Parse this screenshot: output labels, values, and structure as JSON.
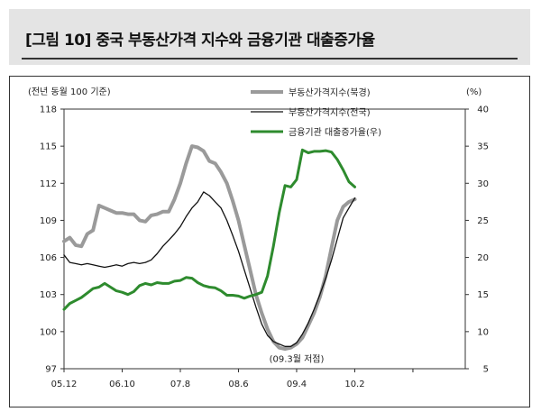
{
  "header": {
    "title": "[그림 10] 중국 부동산가격 지수와 금융기관 대출증가율"
  },
  "chart_data": {
    "type": "line",
    "left_axis_label": "(전년 동월 100 기준)",
    "right_axis_label": "(%)",
    "left_ylim": [
      97,
      118
    ],
    "left_ticks": [
      97,
      100,
      103,
      106,
      109,
      112,
      115,
      118
    ],
    "right_ylim": [
      5,
      40
    ],
    "right_ticks": [
      5,
      10,
      15,
      20,
      25,
      30,
      35,
      40
    ],
    "xlim": [
      0,
      69
    ],
    "x_ticks": [
      {
        "label": "05.12",
        "x": 0
      },
      {
        "label": "06.10",
        "x": 10
      },
      {
        "label": "07.8",
        "x": 20
      },
      {
        "label": "08.6",
        "x": 30
      },
      {
        "label": "09.4",
        "x": 40
      },
      {
        "label": "10.2",
        "x": 50
      }
    ],
    "annotation": {
      "text": "(09.3월 저점)",
      "x": 40,
      "y": 98.7
    },
    "series": [
      {
        "name": "부동산가격지수(북경)",
        "axis": "left",
        "color": "#9a9a9a",
        "x": [
          0,
          1,
          2,
          3,
          4,
          5,
          6,
          7,
          8,
          9,
          10,
          11,
          12,
          13,
          14,
          15,
          16,
          17,
          18,
          19,
          20,
          21,
          22,
          23,
          24,
          25,
          26,
          27,
          28,
          29,
          30,
          31,
          32,
          33,
          34,
          35,
          36,
          37,
          38,
          39,
          40,
          41,
          42,
          43,
          44,
          45,
          46,
          47,
          48,
          49,
          50
        ],
        "values": [
          107.3,
          107.6,
          107.0,
          106.9,
          107.9,
          108.2,
          110.2,
          110.0,
          109.8,
          109.6,
          109.6,
          109.5,
          109.5,
          109.0,
          108.9,
          109.4,
          109.5,
          109.7,
          109.7,
          110.7,
          112.0,
          113.6,
          115.0,
          114.9,
          114.6,
          113.8,
          113.6,
          112.9,
          112.0,
          110.6,
          109.0,
          107.0,
          105.0,
          103.0,
          101.5,
          100.2,
          99.2,
          98.7,
          98.6,
          98.7,
          99.0,
          99.5,
          100.5,
          101.5,
          102.8,
          104.5,
          106.8,
          109.0,
          110.1,
          110.5,
          110.7
        ]
      },
      {
        "name": "부동산가격지수(전국)",
        "axis": "left",
        "color": "#111111",
        "x": [
          0,
          1,
          2,
          3,
          4,
          5,
          6,
          7,
          8,
          9,
          10,
          11,
          12,
          13,
          14,
          15,
          16,
          17,
          18,
          19,
          20,
          21,
          22,
          23,
          24,
          25,
          26,
          27,
          28,
          29,
          30,
          31,
          32,
          33,
          34,
          35,
          36,
          37,
          38,
          39,
          40,
          41,
          42,
          43,
          44,
          45,
          46,
          47,
          48,
          49,
          50
        ],
        "values": [
          106.2,
          105.6,
          105.5,
          105.4,
          105.5,
          105.4,
          105.3,
          105.2,
          105.3,
          105.4,
          105.3,
          105.5,
          105.6,
          105.5,
          105.6,
          105.8,
          106.3,
          106.9,
          107.4,
          107.9,
          108.5,
          109.3,
          110.0,
          110.5,
          111.3,
          111.0,
          110.5,
          110.0,
          109.0,
          107.8,
          106.5,
          105.0,
          103.5,
          102.0,
          100.6,
          99.7,
          99.2,
          99.0,
          98.8,
          98.8,
          99.1,
          99.8,
          100.7,
          101.8,
          103.0,
          104.3,
          105.8,
          107.5,
          109.2,
          110.0,
          110.8
        ]
      },
      {
        "name": "금융기관 대출증가율(우)",
        "axis": "right",
        "color": "#2e8b2e",
        "x": [
          0,
          1,
          2,
          3,
          4,
          5,
          6,
          7,
          8,
          9,
          10,
          11,
          12,
          13,
          14,
          15,
          16,
          17,
          18,
          19,
          20,
          21,
          22,
          23,
          24,
          25,
          26,
          27,
          28,
          29,
          30,
          31,
          32,
          33,
          34,
          35,
          36,
          37,
          38,
          39,
          40,
          41,
          42,
          43,
          44,
          45,
          46,
          47,
          48,
          49,
          50
        ],
        "values": [
          13.0,
          13.8,
          14.2,
          14.6,
          15.2,
          15.8,
          16.0,
          16.5,
          16.0,
          15.5,
          15.3,
          15.0,
          15.4,
          16.2,
          16.5,
          16.3,
          16.6,
          16.5,
          16.5,
          16.8,
          16.9,
          17.3,
          17.2,
          16.6,
          16.2,
          16.0,
          15.9,
          15.5,
          14.9,
          14.9,
          14.8,
          14.5,
          14.8,
          15.0,
          15.3,
          17.5,
          21.5,
          26.0,
          29.7,
          29.5,
          30.5,
          34.5,
          34.1,
          34.3,
          34.3,
          34.4,
          34.2,
          33.2,
          31.8,
          30.2,
          29.5
        ]
      }
    ]
  }
}
